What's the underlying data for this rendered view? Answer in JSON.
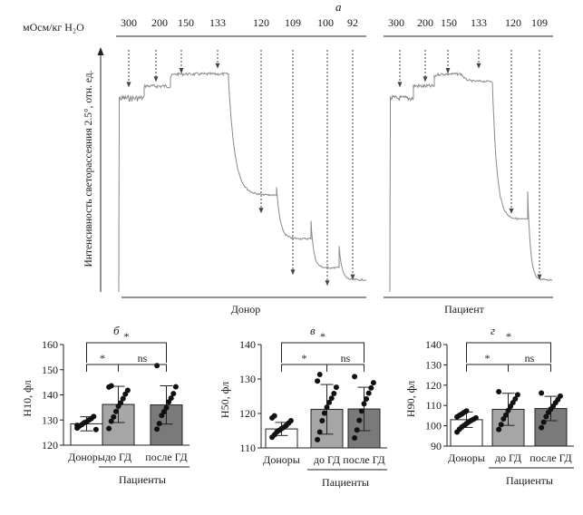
{
  "panel_a": {
    "letter": "а",
    "osm_label": "мОсм/кг H₂O",
    "ylabel": "Интенсивность светорассеяния 2.5°, отн. ед.",
    "donor": {
      "label": "Донор",
      "osm": [
        "300",
        "200",
        "150",
        "133",
        "120",
        "109",
        "100",
        "92"
      ]
    },
    "patient": {
      "label": "Пациент",
      "osm": [
        "300",
        "200",
        "150",
        "133",
        "120",
        "109"
      ]
    }
  },
  "bar_panels": [
    {
      "letter": "б",
      "ylabel": "H10, фл",
      "yticks": [
        "120",
        "130",
        "140",
        "150",
        "160"
      ],
      "sig_low": "*",
      "sig_high": "*",
      "sig_mid": "ns"
    },
    {
      "letter": "в",
      "ylabel": "H50, фл",
      "yticks": [
        "110",
        "120",
        "130",
        "140"
      ],
      "sig_low": "*",
      "sig_high": "*",
      "sig_mid": "ns"
    },
    {
      "letter": "г",
      "ylabel": "H90, фл",
      "yticks": [
        "90",
        "100",
        "110",
        "120",
        "130",
        "140"
      ],
      "sig_low": "*",
      "sig_high": "*",
      "sig_mid": "ns"
    }
  ],
  "categories": [
    "Доноры",
    "до ГД",
    "после ГД"
  ],
  "group_label": "Пациенты",
  "colors": {
    "donors": "#ffffff",
    "before": "#a6a6a6",
    "after": "#7a7a7a",
    "trace": "#8a8a8a",
    "dot": "#111111"
  },
  "chart_data": [
    {
      "type": "line",
      "title": "Донор",
      "ylabel": "Интенсивность светорассеяния 2.5°, отн. ед.",
      "osmolality_steps": [
        300,
        200,
        150,
        133,
        120,
        109,
        100,
        92
      ],
      "plateau_levels": [
        0.8,
        0.85,
        0.9,
        0.88,
        0.4,
        0.22,
        0.1,
        0.05
      ]
    },
    {
      "type": "line",
      "title": "Пациент",
      "ylabel": "Интенсивность светорассеяния 2.5°, отн. ед.",
      "osmolality_steps": [
        300,
        200,
        150,
        133,
        120,
        109
      ],
      "plateau_levels": [
        0.8,
        0.85,
        0.9,
        0.87,
        0.3,
        0.05
      ]
    },
    {
      "type": "bar",
      "ylabel": "H10, фл",
      "ylim": [
        120,
        160
      ],
      "categories": [
        "Доноры",
        "до ГД",
        "после ГД"
      ],
      "means": [
        128.5,
        136.2,
        136.0
      ],
      "sd": [
        2.8,
        7.2,
        7.6
      ],
      "points": [
        [
          126.8,
          127.6,
          128.2,
          128.9,
          129.3,
          130.0,
          130.6,
          131.4,
          126.2,
          127.9
        ],
        [
          126.6,
          129.5,
          131.2,
          133.4,
          135.5,
          136.8,
          138.5,
          140.3,
          141.8,
          143.1,
          143.6
        ],
        [
          126.4,
          128.6,
          131.8,
          133.3,
          134.9,
          137.2,
          138.7,
          140.5,
          143.2,
          151.6
        ]
      ]
    },
    {
      "type": "bar",
      "ylabel": "H50, фл",
      "ylim": [
        110,
        140
      ],
      "categories": [
        "Доноры",
        "до ГД",
        "после ГД"
      ],
      "means": [
        115.5,
        121.2,
        121.3
      ],
      "sd": [
        1.9,
        7.2,
        6.3
      ],
      "points": [
        [
          113.1,
          113.8,
          114.6,
          115.1,
          115.6,
          116.0,
          116.5,
          117.2,
          117.9,
          118.7,
          119.3
        ],
        [
          112.4,
          114.6,
          117.9,
          120.1,
          121.8,
          123.2,
          124.4,
          125.8,
          127.6,
          129.4,
          131.3
        ],
        [
          112.9,
          115.2,
          118.0,
          120.7,
          122.8,
          124.2,
          125.9,
          127.4,
          128.9,
          130.7
        ]
      ]
    },
    {
      "type": "bar",
      "ylabel": "H90, фл",
      "ylim": [
        90,
        140
      ],
      "categories": [
        "Доноры",
        "до ГД",
        "после ГД"
      ],
      "means": [
        103.0,
        108.1,
        108.5
      ],
      "sd": [
        3.8,
        7.9,
        6.0
      ],
      "points": [
        [
          96.9,
          98.3,
          99.4,
          100.2,
          101.1,
          101.9,
          102.6,
          103.2,
          103.9,
          104.4,
          105.1,
          105.8,
          106.6,
          107.3
        ],
        [
          98.2,
          100.6,
          103.4,
          105.3,
          107.5,
          109.6,
          111.4,
          113.2,
          115.3,
          116.8
        ],
        [
          99.1,
          101.8,
          104.5,
          106.6,
          108.2,
          109.7,
          111.3,
          112.9,
          114.6,
          116.1
        ]
      ]
    }
  ]
}
